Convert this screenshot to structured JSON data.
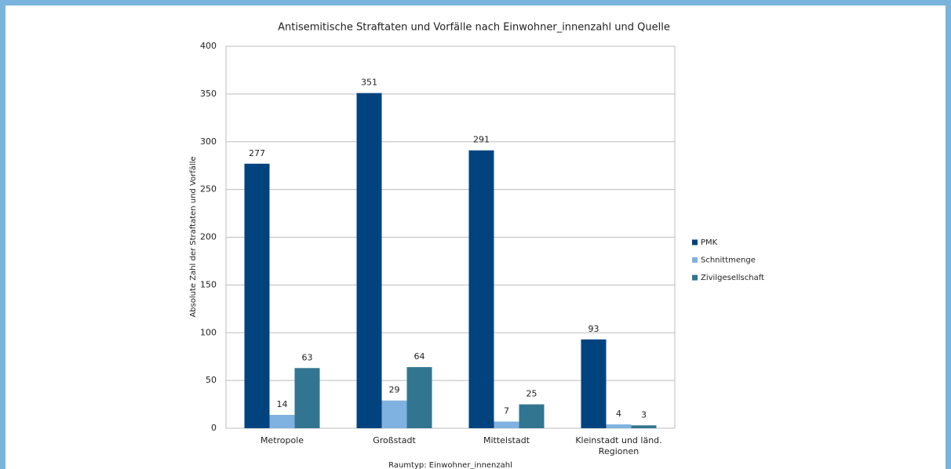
{
  "chart_data": {
    "type": "bar",
    "title": "Antisemitische Straftaten und Vorfälle nach Einwohner_innenzahl und Quelle",
    "x_label": "Raumtyp: Einwohner_innenzahl",
    "y_label": "Absolute Zahl der Straftaten und Vorfälle",
    "categories": [
      "Metropole",
      "Großstadt",
      "Mittelstadt",
      "Kleinstadt und länd. Regionen"
    ],
    "series": [
      {
        "name": "PMK",
        "color": "#00437f",
        "values": [
          277,
          351,
          291,
          93
        ]
      },
      {
        "name": "Schnittmenge",
        "color": "#7fb2e0",
        "values": [
          14,
          29,
          7,
          4
        ]
      },
      {
        "name": "Zivilgesellschaft",
        "color": "#327590",
        "values": [
          63,
          64,
          25,
          3
        ]
      }
    ],
    "ylim": [
      0,
      400
    ],
    "yticks": [
      0,
      50,
      100,
      150,
      200,
      250,
      300,
      350,
      400
    ],
    "grid": true,
    "legend": "right"
  }
}
